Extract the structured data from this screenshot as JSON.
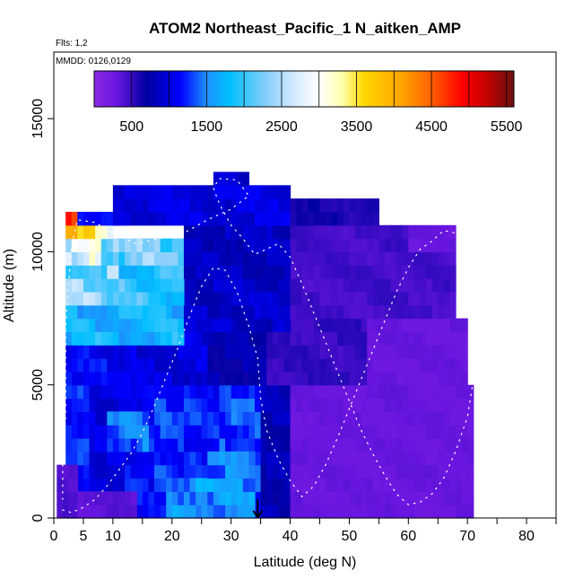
{
  "chart_data": {
    "type": "heatmap",
    "title": "ATOM2 Northeast_Pacific_1 N_aitken_AMP",
    "annotations": [
      "Flts: 1,2",
      "MMDD: 0126,0129"
    ],
    "xlabel": "Latitude (deg N)",
    "ylabel": "Altitude (m)",
    "xlim": [
      0,
      85
    ],
    "ylim": [
      0,
      17500
    ],
    "x_ticks_major": [
      0,
      5,
      10,
      20,
      30,
      40,
      50,
      60,
      70,
      80
    ],
    "x_ticks_major_labels": [
      "0",
      "5",
      "10",
      "20",
      "30",
      "40",
      "50",
      "60",
      "70",
      "80"
    ],
    "x_ticks_minor": [
      15,
      25,
      35,
      45,
      55,
      65,
      75,
      85
    ],
    "y_ticks": [
      0,
      5000,
      10000,
      15000
    ],
    "y_tick_labels": [
      "0",
      "5000",
      "10000",
      "15000"
    ],
    "colorbar": {
      "range": [
        0,
        5600
      ],
      "tick_values": [
        500,
        1500,
        2500,
        3500,
        4500,
        5500
      ],
      "tick_labels": [
        "500",
        "1500",
        "2500",
        "3500",
        "4500",
        "5500"
      ],
      "divider_values": [
        500,
        1000,
        1500,
        2000,
        2500,
        3000,
        3500,
        4000,
        4500,
        5000,
        5500
      ],
      "stops": [
        {
          "v": 0,
          "color": "#8a2be2"
        },
        {
          "v": 300,
          "color": "#6a16e0"
        },
        {
          "v": 700,
          "color": "#0000a0"
        },
        {
          "v": 1150,
          "color": "#0000ff"
        },
        {
          "v": 1500,
          "color": "#1e90ff"
        },
        {
          "v": 1800,
          "color": "#00bfff"
        },
        {
          "v": 2300,
          "color": "#87cefa"
        },
        {
          "v": 2700,
          "color": "#d8ecff"
        },
        {
          "v": 3000,
          "color": "#ffffff"
        },
        {
          "v": 3300,
          "color": "#ffffb0"
        },
        {
          "v": 3600,
          "color": "#ffd700"
        },
        {
          "v": 4100,
          "color": "#ffa500"
        },
        {
          "v": 4500,
          "color": "#ff6000"
        },
        {
          "v": 4900,
          "color": "#ff0000"
        },
        {
          "v": 5200,
          "color": "#cc0000"
        },
        {
          "v": 5600,
          "color": "#6b1010"
        }
      ]
    },
    "grid": false,
    "legend": "colorbar top",
    "column_width_deg": 1,
    "row_height_m": 500,
    "regions": [
      {
        "lat": [
          2,
          6
        ],
        "alt": [
          0,
          6500
        ],
        "value": 1200
      },
      {
        "lat": [
          6,
          12
        ],
        "alt": [
          0,
          5000
        ],
        "value": 1000
      },
      {
        "lat": [
          12,
          17
        ],
        "alt": [
          0,
          5000
        ],
        "value": 1150
      },
      {
        "lat": [
          17,
          22
        ],
        "alt": [
          0,
          5000
        ],
        "value": 1250
      },
      {
        "lat": [
          22,
          28
        ],
        "alt": [
          0,
          5000
        ],
        "value": 1200
      },
      {
        "lat": [
          28,
          35
        ],
        "alt": [
          0,
          5000
        ],
        "value": 1300
      },
      {
        "lat": [
          35,
          40
        ],
        "alt": [
          0,
          5000
        ],
        "value": 800
      },
      {
        "lat": [
          40,
          71
        ],
        "alt": [
          0,
          5000
        ],
        "value": 300
      },
      {
        "lat": [
          0.5,
          4
        ],
        "alt": [
          0,
          2000
        ],
        "value": 400
      },
      {
        "lat": [
          4,
          14
        ],
        "alt": [
          0,
          1000
        ],
        "value": 350
      },
      {
        "lat": [
          19,
          34
        ],
        "alt": [
          0,
          1500
        ],
        "value": 1550
      },
      {
        "lat": [
          26,
          34
        ],
        "alt": [
          1500,
          2500
        ],
        "value": 1450
      },
      {
        "lat": [
          9,
          16
        ],
        "alt": [
          2500,
          4000
        ],
        "value": 1400
      },
      {
        "lat": [
          3,
          13
        ],
        "alt": [
          5000,
          6500
        ],
        "value": 1100
      },
      {
        "lat": [
          13,
          26
        ],
        "alt": [
          5000,
          7000
        ],
        "value": 1000
      },
      {
        "lat": [
          26,
          36
        ],
        "alt": [
          5000,
          7000
        ],
        "value": 750
      },
      {
        "lat": [
          36,
          53
        ],
        "alt": [
          5000,
          7500
        ],
        "value": 500
      },
      {
        "lat": [
          53,
          70
        ],
        "alt": [
          5000,
          7500
        ],
        "value": 300
      },
      {
        "lat": [
          2,
          22
        ],
        "alt": [
          6500,
          8000
        ],
        "value": 1750
      },
      {
        "lat": [
          22,
          40
        ],
        "alt": [
          7000,
          9000
        ],
        "value": 900
      },
      {
        "lat": [
          40,
          68
        ],
        "alt": [
          7500,
          10000
        ],
        "value": 450
      },
      {
        "lat": [
          2,
          11
        ],
        "alt": [
          8000,
          9500
        ],
        "value": 2300
      },
      {
        "lat": [
          11,
          22
        ],
        "alt": [
          8000,
          9500
        ],
        "value": 1950
      },
      {
        "lat": [
          2,
          8
        ],
        "alt": [
          9500,
          10500
        ],
        "value": 2800
      },
      {
        "lat": [
          8,
          22
        ],
        "alt": [
          9500,
          10500
        ],
        "value": 2200
      },
      {
        "lat": [
          22,
          40
        ],
        "alt": [
          9000,
          11000
        ],
        "value": 850
      },
      {
        "lat": [
          40,
          60
        ],
        "alt": [
          10000,
          11000
        ],
        "value": 450
      },
      {
        "lat": [
          60,
          68
        ],
        "alt": [
          10000,
          11000
        ],
        "value": 300
      },
      {
        "lat": [
          2,
          4
        ],
        "alt": [
          10500,
          11000
        ],
        "value": 4100
      },
      {
        "lat": [
          4,
          10
        ],
        "alt": [
          10500,
          11000
        ],
        "value": 3300
      },
      {
        "lat": [
          2,
          4
        ],
        "alt": [
          11000,
          11500
        ],
        "value": 5000
      },
      {
        "lat": [
          4,
          12
        ],
        "alt": [
          11000,
          11500
        ],
        "value": 1300
      },
      {
        "lat": [
          10,
          40
        ],
        "alt": [
          11000,
          12500
        ],
        "value": 1000
      },
      {
        "lat": [
          40,
          55
        ],
        "alt": [
          11000,
          12000
        ],
        "value": 600
      },
      {
        "lat": [
          27,
          33
        ],
        "alt": [
          12500,
          13000
        ],
        "value": 900
      }
    ],
    "flight_track": [
      [
        1.5,
        300
      ],
      [
        3,
        200
      ],
      [
        5,
        400
      ],
      [
        7,
        700
      ],
      [
        9,
        1200
      ],
      [
        11,
        1800
      ],
      [
        13,
        2400
      ],
      [
        15,
        3200
      ],
      [
        17,
        4200
      ],
      [
        19,
        5300
      ],
      [
        21,
        6400
      ],
      [
        23,
        7600
      ],
      [
        25,
        8700
      ],
      [
        27,
        9400
      ],
      [
        29,
        9300
      ],
      [
        31,
        8500
      ],
      [
        33,
        7200
      ],
      [
        34.5,
        6000
      ],
      [
        35,
        4500
      ],
      [
        36,
        3300
      ],
      [
        38,
        2200
      ],
      [
        40,
        1400
      ],
      [
        42,
        800
      ],
      [
        44,
        1200
      ],
      [
        46,
        2000
      ],
      [
        48,
        3000
      ],
      [
        50,
        4100
      ],
      [
        52,
        5200
      ],
      [
        54,
        6300
      ],
      [
        56,
        7400
      ],
      [
        58,
        8500
      ],
      [
        60,
        9400
      ],
      [
        62,
        10100
      ],
      [
        64,
        10400
      ],
      [
        66,
        10800
      ],
      [
        68,
        10700
      ],
      [
        70,
        9800
      ],
      [
        71,
        8500
      ],
      [
        72,
        6800
      ],
      [
        71,
        5200
      ],
      [
        70,
        3800
      ],
      [
        68,
        2500
      ],
      [
        66,
        1500
      ],
      [
        64,
        900
      ],
      [
        62,
        600
      ],
      [
        60,
        500
      ],
      [
        58,
        900
      ],
      [
        56,
        1600
      ],
      [
        54,
        2400
      ],
      [
        52,
        3300
      ],
      [
        50,
        4400
      ],
      [
        48,
        5500
      ],
      [
        46,
        6600
      ],
      [
        44,
        7700
      ],
      [
        42,
        8800
      ],
      [
        40,
        9800
      ],
      [
        38,
        10300
      ],
      [
        36,
        10100
      ],
      [
        34,
        9900
      ],
      [
        32,
        10500
      ],
      [
        30,
        11000
      ],
      [
        28,
        11800
      ],
      [
        27,
        12400
      ],
      [
        28,
        12750
      ],
      [
        31,
        12700
      ],
      [
        33,
        12100
      ],
      [
        30,
        11600
      ],
      [
        26,
        11200
      ],
      [
        22,
        10700
      ],
      [
        18,
        10500
      ],
      [
        14,
        10300
      ],
      [
        10,
        10700
      ],
      [
        7,
        11100
      ],
      [
        4,
        11200
      ],
      [
        3,
        10200
      ],
      [
        2.5,
        8800
      ],
      [
        2,
        7200
      ],
      [
        2,
        5500
      ],
      [
        2,
        3800
      ],
      [
        1.5,
        2000
      ],
      [
        1.5,
        700
      ]
    ],
    "marker": {
      "type": "arrow-down",
      "lat": 34.5,
      "alt_top": 700,
      "alt_bottom": 0
    }
  }
}
